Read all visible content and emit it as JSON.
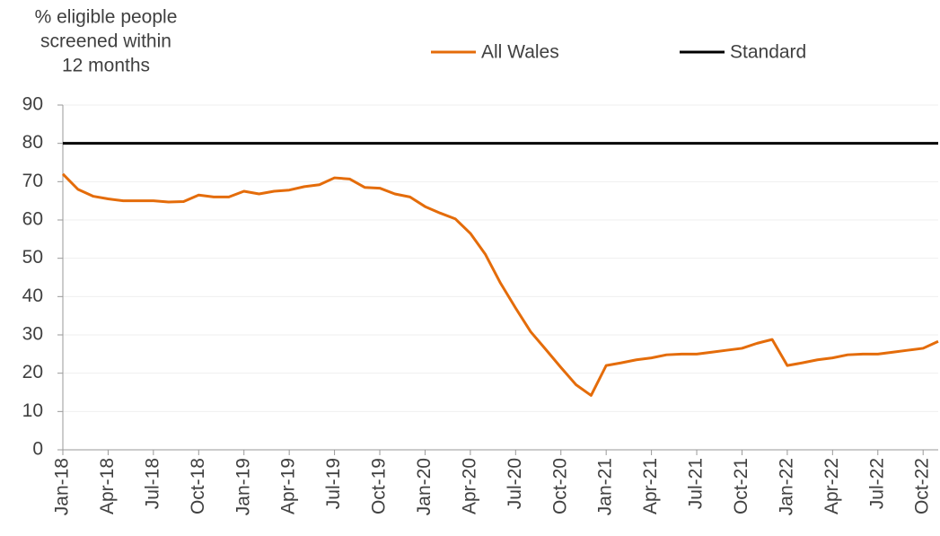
{
  "chart_data": {
    "type": "line",
    "y_axis_title": [
      "% eligible people",
      "screened within",
      "12 months"
    ],
    "categories": [
      "Jan-18",
      null,
      null,
      "Apr-18",
      null,
      null,
      "Jul-18",
      null,
      null,
      "Oct-18",
      null,
      null,
      "Jan-19",
      null,
      null,
      "Apr-19",
      null,
      null,
      "Jul-19",
      null,
      null,
      "Oct-19",
      null,
      null,
      "Jan-20",
      null,
      null,
      "Apr-20",
      null,
      null,
      "Jul-20",
      null,
      null,
      "Oct-20",
      null,
      null,
      "Jan-21",
      null,
      null,
      "Apr-21",
      null,
      null,
      "Jul-21",
      null,
      null,
      "Oct-21",
      null,
      null,
      "Jan-22",
      null,
      null,
      "Apr-22",
      null,
      null,
      "Jul-22",
      null,
      null,
      "Oct-22",
      null
    ],
    "series": [
      {
        "name": "All Wales",
        "color": "#e46c0a",
        "values": [
          72,
          68,
          66.2,
          65.5,
          65,
          65,
          65,
          64.7,
          64.8,
          66.5,
          66,
          66,
          67.5,
          66.8,
          67.5,
          67.8,
          68.7,
          69.2,
          71,
          70.7,
          68.5,
          68.3,
          66.8,
          66,
          63.5,
          61.8,
          60.3,
          56.5,
          51,
          43.5,
          37,
          30.8,
          26.2,
          21.5,
          17,
          14.2,
          22,
          22.7,
          23.5,
          24,
          24.8,
          25,
          25,
          25.5,
          26,
          26.5,
          27.8,
          28.8,
          22,
          22.7,
          23.5,
          24,
          24.8,
          25,
          25,
          25.5,
          26,
          26.5,
          28.3
        ]
      },
      {
        "name": "Standard",
        "color": "#000000",
        "values": [
          80,
          80,
          80,
          80,
          80,
          80,
          80,
          80,
          80,
          80,
          80,
          80,
          80,
          80,
          80,
          80,
          80,
          80,
          80,
          80,
          80,
          80,
          80,
          80,
          80,
          80,
          80,
          80,
          80,
          80,
          80,
          80,
          80,
          80,
          80,
          80,
          80,
          80,
          80,
          80,
          80,
          80,
          80,
          80,
          80,
          80,
          80,
          80,
          80,
          80,
          80,
          80,
          80,
          80,
          80,
          80,
          80,
          80,
          80
        ]
      }
    ],
    "ylim": [
      0,
      90
    ],
    "yticks": [
      0,
      10,
      20,
      30,
      40,
      50,
      60,
      70,
      80,
      90
    ],
    "grid": true,
    "legend": "top"
  }
}
